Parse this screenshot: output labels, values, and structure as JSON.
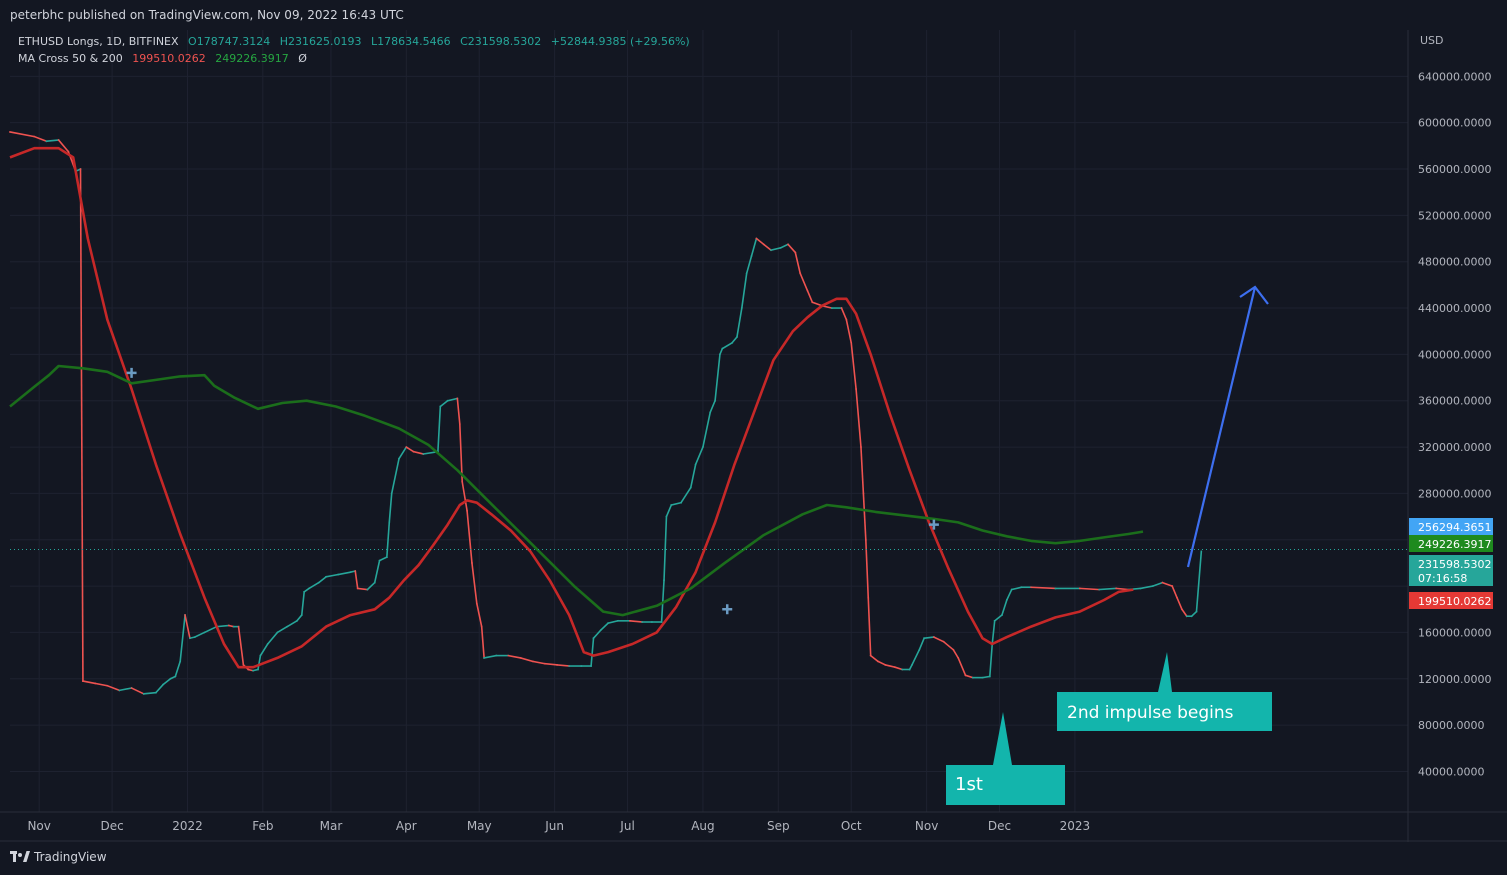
{
  "header": {
    "publish_line": "peterbhc published on TradingView.com, Nov 09, 2022 16:43 UTC"
  },
  "legend": {
    "symbol": "ETHUSD Longs, 1D, BITFINEX",
    "open": "O178747.3124",
    "high": "H231625.0193",
    "low": "L178634.5466",
    "close": "C231598.5302",
    "change": "+52844.9385 (+29.56%)",
    "indicator_name": "MA Cross 50 & 200",
    "ma_fast": "199510.0262",
    "ma_slow": "249226.3917",
    "extra": "Ø"
  },
  "footer": {
    "brand": "TradingView"
  },
  "colors": {
    "background": "#131722",
    "grid": "#1e2230",
    "up": "#26a69a",
    "down": "#ef5350",
    "ma_fast": "#c62828",
    "ma_slow": "#1b6e1b",
    "arrow": "#3d6ff0",
    "callout": "#13b5ac"
  },
  "chart_data": {
    "type": "line",
    "x_axis_ticks": [
      "Nov",
      "Dec",
      "2022",
      "Feb",
      "Mar",
      "Apr",
      "May",
      "Jun",
      "Jul",
      "Aug",
      "Sep",
      "Oct",
      "Nov",
      "Dec",
      "2023"
    ],
    "y_axis_unit": "USD",
    "y_ticks": [
      40000,
      80000,
      120000,
      160000,
      200000,
      240000,
      280000,
      320000,
      360000,
      400000,
      440000,
      480000,
      520000,
      560000,
      600000,
      640000
    ],
    "y_tick_labels": [
      "40000.0000",
      "80000.0000",
      "120000.0000",
      "160000.0000",
      "",
      "",
      "280000.0000",
      "320000.0000",
      "360000.0000",
      "400000.0000",
      "440000.0000",
      "480000.0000",
      "520000.0000",
      "560000.0000",
      "600000.0000",
      "640000.0000"
    ],
    "ylim": [
      5000,
      680000
    ],
    "x_range_days": [
      -10,
      432
    ],
    "price_series_note": "",
    "price_path": [
      [
        -10,
        592000
      ],
      [
        0,
        588000
      ],
      [
        5,
        584000
      ],
      [
        10,
        585000
      ],
      [
        14,
        575000
      ],
      [
        17,
        558000
      ],
      [
        19,
        560000
      ],
      [
        20,
        118000
      ],
      [
        25,
        116000
      ],
      [
        30,
        114000
      ],
      [
        35,
        110000
      ],
      [
        40,
        112000
      ],
      [
        45,
        107000
      ],
      [
        50,
        108000
      ],
      [
        53,
        115000
      ],
      [
        56,
        120000
      ],
      [
        58,
        122000
      ],
      [
        60,
        135000
      ],
      [
        62,
        175000
      ],
      [
        64,
        155000
      ],
      [
        66,
        156000
      ],
      [
        70,
        160000
      ],
      [
        75,
        165000
      ],
      [
        80,
        166000
      ],
      [
        82,
        165000
      ],
      [
        84,
        165000
      ],
      [
        86,
        132000
      ],
      [
        88,
        128000
      ],
      [
        90,
        127000
      ],
      [
        92,
        128000
      ],
      [
        93,
        140000
      ],
      [
        96,
        150000
      ],
      [
        100,
        160000
      ],
      [
        104,
        165000
      ],
      [
        108,
        170000
      ],
      [
        110,
        175000
      ],
      [
        111,
        195000
      ],
      [
        113,
        198000
      ],
      [
        117,
        203000
      ],
      [
        120,
        208000
      ],
      [
        125,
        210000
      ],
      [
        130,
        212000
      ],
      [
        132,
        213000
      ],
      [
        133,
        198000
      ],
      [
        137,
        197000
      ],
      [
        140,
        203000
      ],
      [
        142,
        222000
      ],
      [
        145,
        225000
      ],
      [
        146,
        255000
      ],
      [
        147,
        280000
      ],
      [
        150,
        310000
      ],
      [
        153,
        320000
      ],
      [
        156,
        316000
      ],
      [
        160,
        314000
      ],
      [
        166,
        316000
      ],
      [
        167,
        355000
      ],
      [
        170,
        360000
      ],
      [
        174,
        362000
      ],
      [
        175,
        340000
      ],
      [
        176,
        290000
      ],
      [
        178,
        265000
      ],
      [
        180,
        220000
      ],
      [
        182,
        185000
      ],
      [
        184,
        165000
      ],
      [
        185,
        138000
      ],
      [
        190,
        140000
      ],
      [
        195,
        140000
      ],
      [
        200,
        138000
      ],
      [
        205,
        135000
      ],
      [
        210,
        133000
      ],
      [
        215,
        132000
      ],
      [
        220,
        131000
      ],
      [
        225,
        131000
      ],
      [
        229,
        131000
      ],
      [
        230,
        155000
      ],
      [
        233,
        162000
      ],
      [
        236,
        168000
      ],
      [
        240,
        170000
      ],
      [
        245,
        170000
      ],
      [
        250,
        169000
      ],
      [
        254,
        169000
      ],
      [
        258,
        169000
      ],
      [
        259,
        205000
      ],
      [
        260,
        260000
      ],
      [
        262,
        270000
      ],
      [
        266,
        272000
      ],
      [
        270,
        285000
      ],
      [
        272,
        305000
      ],
      [
        275,
        320000
      ],
      [
        278,
        350000
      ],
      [
        280,
        360000
      ],
      [
        282,
        400000
      ],
      [
        283,
        405000
      ],
      [
        287,
        410000
      ],
      [
        289,
        415000
      ],
      [
        291,
        440000
      ],
      [
        293,
        470000
      ],
      [
        295,
        485000
      ],
      [
        297,
        500000
      ],
      [
        300,
        495000
      ],
      [
        303,
        490000
      ],
      [
        307,
        492000
      ],
      [
        310,
        495000
      ],
      [
        313,
        488000
      ],
      [
        315,
        470000
      ],
      [
        318,
        455000
      ],
      [
        320,
        445000
      ],
      [
        324,
        442000
      ],
      [
        328,
        440000
      ],
      [
        332,
        440000
      ],
      [
        334,
        430000
      ],
      [
        336,
        410000
      ],
      [
        338,
        370000
      ],
      [
        340,
        320000
      ],
      [
        341,
        280000
      ],
      [
        342,
        240000
      ],
      [
        343,
        190000
      ],
      [
        344,
        140000
      ],
      [
        347,
        135000
      ],
      [
        350,
        132000
      ],
      [
        354,
        130000
      ],
      [
        357,
        128000
      ],
      [
        360,
        128000
      ],
      [
        361,
        132000
      ],
      [
        364,
        145000
      ],
      [
        366,
        155000
      ],
      [
        370,
        156000
      ],
      [
        374,
        152000
      ],
      [
        378,
        145000
      ],
      [
        380,
        138000
      ],
      [
        383,
        123000
      ],
      [
        386,
        121000
      ],
      [
        390,
        121000
      ],
      [
        393,
        122000
      ],
      [
        394,
        150000
      ],
      [
        395,
        170000
      ],
      [
        398,
        175000
      ],
      [
        400,
        188000
      ],
      [
        402,
        197000
      ],
      [
        406,
        199000
      ],
      [
        410,
        199000
      ],
      [
        420,
        198000
      ],
      [
        430,
        198000
      ],
      [
        438,
        197000
      ],
      [
        445,
        198000
      ],
      [
        450,
        197000
      ],
      [
        455,
        198000
      ],
      [
        460,
        200000
      ],
      [
        464,
        203000
      ],
      [
        468,
        200000
      ],
      [
        470,
        190000
      ],
      [
        472,
        180000
      ],
      [
        474,
        174000
      ],
      [
        476,
        174000
      ],
      [
        478,
        178000
      ],
      [
        480,
        230000
      ]
    ],
    "series": [
      {
        "name": "MA50",
        "values": [
          [
            -10,
            570000
          ],
          [
            0,
            578000
          ],
          [
            10,
            578000
          ],
          [
            16,
            570000
          ],
          [
            22,
            500000
          ],
          [
            30,
            430000
          ],
          [
            40,
            370000
          ],
          [
            50,
            305000
          ],
          [
            60,
            245000
          ],
          [
            70,
            190000
          ],
          [
            78,
            150000
          ],
          [
            84,
            130000
          ],
          [
            90,
            130000
          ],
          [
            100,
            138000
          ],
          [
            110,
            148000
          ],
          [
            120,
            165000
          ],
          [
            130,
            175000
          ],
          [
            140,
            180000
          ],
          [
            146,
            190000
          ],
          [
            152,
            205000
          ],
          [
            158,
            218000
          ],
          [
            164,
            235000
          ],
          [
            170,
            253000
          ],
          [
            175,
            270000
          ],
          [
            178,
            274000
          ],
          [
            182,
            272000
          ],
          [
            188,
            262000
          ],
          [
            196,
            248000
          ],
          [
            204,
            230000
          ],
          [
            212,
            205000
          ],
          [
            220,
            175000
          ],
          [
            226,
            143000
          ],
          [
            230,
            140000
          ],
          [
            236,
            143000
          ],
          [
            246,
            150000
          ],
          [
            256,
            160000
          ],
          [
            264,
            182000
          ],
          [
            272,
            212000
          ],
          [
            280,
            255000
          ],
          [
            288,
            305000
          ],
          [
            296,
            350000
          ],
          [
            304,
            395000
          ],
          [
            312,
            420000
          ],
          [
            318,
            432000
          ],
          [
            324,
            442000
          ],
          [
            330,
            448000
          ],
          [
            334,
            448000
          ],
          [
            338,
            435000
          ],
          [
            344,
            400000
          ],
          [
            352,
            348000
          ],
          [
            360,
            300000
          ],
          [
            368,
            255000
          ],
          [
            376,
            215000
          ],
          [
            384,
            178000
          ],
          [
            390,
            155000
          ],
          [
            394,
            150000
          ],
          [
            400,
            156000
          ],
          [
            410,
            165000
          ],
          [
            420,
            173000
          ],
          [
            430,
            178000
          ],
          [
            440,
            188000
          ],
          [
            446,
            195000
          ],
          [
            452,
            197000
          ]
        ]
      },
      {
        "name": "MA200",
        "values": [
          [
            -10,
            355000
          ],
          [
            0,
            372000
          ],
          [
            6,
            382000
          ],
          [
            10,
            390000
          ],
          [
            20,
            388000
          ],
          [
            30,
            385000
          ],
          [
            40,
            375000
          ],
          [
            50,
            378000
          ],
          [
            60,
            381000
          ],
          [
            70,
            382000
          ],
          [
            74,
            373000
          ],
          [
            82,
            363000
          ],
          [
            92,
            353000
          ],
          [
            102,
            358000
          ],
          [
            112,
            360000
          ],
          [
            124,
            355000
          ],
          [
            136,
            347000
          ],
          [
            150,
            336000
          ],
          [
            162,
            322000
          ],
          [
            174,
            300000
          ],
          [
            186,
            275000
          ],
          [
            198,
            250000
          ],
          [
            210,
            225000
          ],
          [
            222,
            200000
          ],
          [
            234,
            178000
          ],
          [
            242,
            175000
          ],
          [
            256,
            183000
          ],
          [
            270,
            198000
          ],
          [
            284,
            220000
          ],
          [
            300,
            244000
          ],
          [
            316,
            262000
          ],
          [
            326,
            270000
          ],
          [
            334,
            268000
          ],
          [
            346,
            264000
          ],
          [
            358,
            261000
          ],
          [
            370,
            258000
          ],
          [
            380,
            255000
          ],
          [
            390,
            248000
          ],
          [
            400,
            243000
          ],
          [
            410,
            239000
          ],
          [
            420,
            237000
          ],
          [
            430,
            239000
          ],
          [
            440,
            242000
          ],
          [
            450,
            245000
          ],
          [
            456,
            247000
          ]
        ]
      }
    ],
    "cross_markers": [
      [
        40,
        384000
      ],
      [
        285,
        180000
      ],
      [
        370,
        253000
      ]
    ],
    "price_labels": [
      {
        "value": 256294.3651,
        "text": "256294.3651",
        "color": "#42a5f5"
      },
      {
        "value": 249226.3917,
        "text": "249226.3917",
        "color": "#1e8a1e"
      },
      {
        "value": 231598.5302,
        "text": "231598.5302",
        "sub": "07:16:58",
        "color": "#26a69a"
      },
      {
        "value": 199510.0262,
        "text": "199510.0262",
        "color": "#e53935"
      }
    ],
    "current_price": 231598.5302,
    "annotations": [
      {
        "text": "1st"
      },
      {
        "text": "2nd impulse begins"
      }
    ]
  }
}
